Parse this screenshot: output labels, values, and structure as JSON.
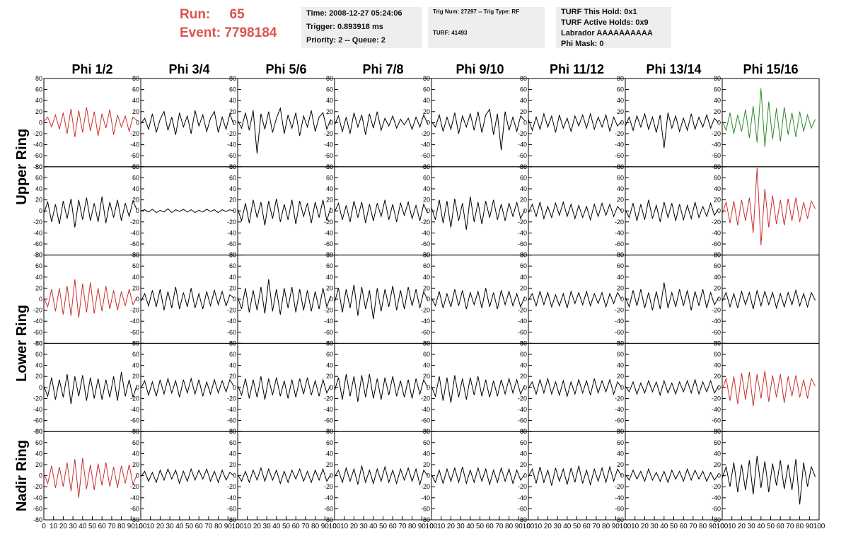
{
  "header": {
    "run_label": "Run:",
    "run": "65",
    "event_label": "Event:",
    "event": "7798184",
    "boxes": [
      [
        "Time: 2008-12-27 05:24:06",
        "Trigger: 0.893918 ms",
        "Priority: 2 -- Queue: 2"
      ],
      [
        "Trig Num: 27297 -- Trig Type: RF",
        "TURF: 41493"
      ],
      [
        "TURF This Hold: 0x1",
        "TURF Active Holds: 0x9",
        "Labrador AAAAAAAAAA",
        "Phi Mask: 0"
      ]
    ]
  },
  "chart_data": {
    "type": "line",
    "columns": [
      "Phi 1/2",
      "Phi 3/4",
      "Phi 5/6",
      "Phi 7/8",
      "Phi 9/10",
      "Phi 11/12",
      "Phi 13/14",
      "Phi 15/16"
    ],
    "row_labels": [
      "Upper Ring",
      "Lower Ring",
      "Nadir Ring"
    ],
    "xlim": [
      0,
      100
    ],
    "ylim": [
      -80,
      80
    ],
    "xticks": [
      0,
      10,
      20,
      30,
      40,
      50,
      60,
      70,
      80,
      90,
      100
    ],
    "yticks": [
      -80,
      -60,
      -40,
      -20,
      0,
      20,
      40,
      60,
      80
    ],
    "x": [
      0,
      4,
      8,
      12,
      16,
      20,
      24,
      28,
      32,
      36,
      40,
      44,
      48,
      52,
      56,
      60,
      64,
      68,
      72,
      76,
      80,
      84,
      88,
      92,
      96
    ],
    "series": [
      {
        "color": "#c8302c",
        "values": [
          2,
          10,
          -8,
          14,
          -12,
          18,
          -20,
          25,
          -26,
          22,
          -18,
          28,
          -15,
          20,
          -24,
          16,
          -10,
          24,
          -22,
          14,
          -8,
          12,
          -16,
          10,
          4
        ]
      },
      {
        "color": "#000000",
        "values": [
          -2,
          8,
          -12,
          16,
          -18,
          6,
          20,
          -14,
          10,
          -22,
          18,
          -8,
          12,
          -20,
          22,
          -6,
          14,
          -16,
          8,
          20,
          -18,
          10,
          -12,
          16,
          -4
        ]
      },
      {
        "color": "#000000",
        "values": [
          4,
          -10,
          18,
          -14,
          22,
          -56,
          16,
          -12,
          20,
          -18,
          8,
          26,
          -20,
          14,
          -10,
          18,
          -24,
          12,
          -8,
          22,
          -16,
          10,
          18,
          -12,
          6
        ]
      },
      {
        "color": "#000000",
        "values": [
          -4,
          12,
          -16,
          10,
          -20,
          18,
          -8,
          14,
          -22,
          16,
          -10,
          20,
          -14,
          8,
          -6,
          12,
          -10,
          6,
          -4,
          8,
          -12,
          10,
          -8,
          14,
          -2
        ]
      },
      {
        "color": "#000000",
        "values": [
          2,
          -8,
          14,
          -16,
          10,
          -12,
          18,
          -20,
          12,
          -8,
          16,
          -14,
          20,
          -18,
          14,
          24,
          -22,
          16,
          -50,
          20,
          -14,
          10,
          -16,
          12,
          4
        ]
      },
      {
        "color": "#000000",
        "values": [
          6,
          -14,
          10,
          -12,
          16,
          -8,
          12,
          -18,
          14,
          -10,
          8,
          -16,
          12,
          -6,
          14,
          -10,
          16,
          -12,
          10,
          -8,
          14,
          -16,
          10,
          -6,
          2
        ]
      },
      {
        "color": "#000000",
        "values": [
          -6,
          10,
          -14,
          12,
          -8,
          16,
          -12,
          10,
          -18,
          14,
          -46,
          18,
          -10,
          12,
          -16,
          8,
          -14,
          16,
          -12,
          10,
          -8,
          14,
          -10,
          8,
          0
        ]
      },
      {
        "color": "#2a8a2a",
        "values": [
          4,
          -14,
          18,
          -20,
          14,
          -16,
          24,
          -28,
          30,
          -36,
          62,
          -44,
          38,
          -30,
          26,
          -34,
          28,
          -22,
          18,
          -26,
          20,
          -16,
          14,
          -10,
          6
        ]
      },
      {
        "color": "#000000",
        "values": [
          -4,
          16,
          -20,
          12,
          -24,
          18,
          -14,
          22,
          -30,
          20,
          -16,
          24,
          -18,
          14,
          -20,
          26,
          -22,
          16,
          -12,
          20,
          -18,
          14,
          -10,
          18,
          2
        ]
      },
      {
        "color": "#000000",
        "values": [
          0,
          2,
          -2,
          3,
          -3,
          1,
          -2,
          4,
          -3,
          2,
          -1,
          3,
          -2,
          2,
          -3,
          1,
          -2,
          3,
          -1,
          2,
          -3,
          2,
          -1,
          2,
          0
        ]
      },
      {
        "color": "#000000",
        "values": [
          4,
          -18,
          14,
          -22,
          20,
          -12,
          16,
          -26,
          18,
          -14,
          22,
          -20,
          12,
          -16,
          20,
          -24,
          18,
          -10,
          14,
          -22,
          16,
          -12,
          20,
          -18,
          6
        ]
      },
      {
        "color": "#000000",
        "values": [
          -2,
          14,
          -16,
          10,
          -20,
          18,
          -12,
          16,
          -22,
          12,
          -18,
          14,
          -10,
          20,
          -16,
          12,
          -20,
          14,
          -8,
          16,
          -14,
          10,
          -18,
          12,
          -4
        ]
      },
      {
        "color": "#000000",
        "values": [
          6,
          -16,
          20,
          -22,
          18,
          -30,
          22,
          -18,
          14,
          -34,
          26,
          -20,
          16,
          -24,
          18,
          -12,
          20,
          -16,
          12,
          -18,
          14,
          -10,
          16,
          -14,
          2
        ]
      },
      {
        "color": "#000000",
        "values": [
          -4,
          12,
          -10,
          16,
          -14,
          8,
          -12,
          14,
          -8,
          16,
          -10,
          12,
          -14,
          10,
          -12,
          8,
          -16,
          12,
          -10,
          14,
          -8,
          12,
          -10,
          8,
          0
        ]
      },
      {
        "color": "#000000",
        "values": [
          2,
          -12,
          14,
          -18,
          12,
          -16,
          20,
          -14,
          10,
          -20,
          16,
          -12,
          14,
          -18,
          12,
          -16,
          10,
          -14,
          16,
          -12,
          8,
          -10,
          14,
          -8,
          4
        ]
      },
      {
        "color": "#c8302c",
        "values": [
          -6,
          16,
          -22,
          18,
          -26,
          20,
          -18,
          24,
          -40,
          78,
          -62,
          40,
          -30,
          28,
          -24,
          20,
          -26,
          22,
          -18,
          24,
          -20,
          16,
          -14,
          18,
          4
        ]
      },
      {
        "color": "#c8302c",
        "values": [
          2,
          -14,
          18,
          -22,
          20,
          -28,
          24,
          -30,
          36,
          -34,
          28,
          -24,
          30,
          -26,
          20,
          -22,
          24,
          -18,
          16,
          -20,
          14,
          -12,
          18,
          -10,
          4
        ]
      },
      {
        "color": "#000000",
        "values": [
          -4,
          10,
          -12,
          16,
          -14,
          18,
          -20,
          14,
          -16,
          22,
          -18,
          12,
          -14,
          20,
          -16,
          10,
          -18,
          14,
          -12,
          16,
          -10,
          14,
          -12,
          8,
          2
        ]
      },
      {
        "color": "#000000",
        "values": [
          4,
          -18,
          20,
          -24,
          16,
          -20,
          22,
          -26,
          36,
          -22,
          18,
          -28,
          20,
          -16,
          22,
          -24,
          18,
          -20,
          16,
          -22,
          14,
          -18,
          20,
          -14,
          6
        ]
      },
      {
        "color": "#000000",
        "values": [
          -6,
          20,
          -24,
          18,
          -16,
          26,
          -30,
          22,
          -18,
          16,
          -36,
          20,
          -22,
          18,
          -14,
          24,
          -20,
          16,
          -18,
          22,
          -12,
          18,
          -16,
          14,
          -2
        ]
      },
      {
        "color": "#000000",
        "values": [
          2,
          -12,
          14,
          -16,
          10,
          -14,
          18,
          -12,
          16,
          -18,
          12,
          -10,
          14,
          -16,
          20,
          -14,
          12,
          -18,
          16,
          -10,
          14,
          -12,
          10,
          -14,
          4
        ]
      },
      {
        "color": "#000000",
        "values": [
          -2,
          10,
          -12,
          14,
          -10,
          12,
          -14,
          8,
          -12,
          10,
          -16,
          14,
          -8,
          12,
          -10,
          14,
          -12,
          10,
          -8,
          12,
          -14,
          10,
          -8,
          12,
          0
        ]
      },
      {
        "color": "#000000",
        "values": [
          4,
          -14,
          16,
          -12,
          18,
          -16,
          12,
          -20,
          14,
          -18,
          30,
          -16,
          12,
          -14,
          18,
          -12,
          16,
          -20,
          14,
          -12,
          18,
          -16,
          12,
          -10,
          2
        ]
      },
      {
        "color": "#000000",
        "values": [
          -4,
          12,
          -14,
          10,
          -16,
          14,
          -10,
          12,
          -18,
          16,
          -12,
          14,
          -10,
          12,
          -16,
          10,
          -14,
          12,
          -10,
          16,
          -12,
          10,
          -14,
          12,
          -2
        ]
      },
      {
        "color": "#000000",
        "values": [
          2,
          -16,
          18,
          -22,
          14,
          -18,
          24,
          -30,
          20,
          -16,
          22,
          -24,
          18,
          -20,
          16,
          -22,
          14,
          -18,
          20,
          -24,
          28,
          -16,
          14,
          -18,
          4
        ]
      },
      {
        "color": "#000000",
        "values": [
          -2,
          12,
          -14,
          10,
          -16,
          14,
          -12,
          16,
          -10,
          12,
          -18,
          14,
          -10,
          16,
          -12,
          14,
          -16,
          10,
          -12,
          14,
          -10,
          12,
          -8,
          14,
          2
        ]
      },
      {
        "color": "#000000",
        "values": [
          4,
          -14,
          16,
          -20,
          14,
          -18,
          20,
          -22,
          16,
          -14,
          18,
          -16,
          12,
          -20,
          14,
          -18,
          16,
          -12,
          18,
          -14,
          12,
          -16,
          14,
          -10,
          4
        ]
      },
      {
        "color": "#000000",
        "values": [
          -6,
          18,
          -22,
          24,
          -16,
          20,
          -26,
          22,
          -18,
          24,
          -20,
          16,
          -22,
          18,
          -14,
          20,
          -16,
          12,
          -18,
          14,
          -20,
          16,
          -12,
          14,
          0
        ]
      },
      {
        "color": "#000000",
        "values": [
          2,
          -16,
          20,
          -24,
          18,
          -28,
          22,
          -18,
          16,
          -22,
          18,
          -14,
          20,
          -16,
          14,
          -18,
          12,
          -16,
          14,
          -12,
          16,
          -10,
          14,
          -12,
          4
        ]
      },
      {
        "color": "#000000",
        "values": [
          -2,
          10,
          -12,
          14,
          -10,
          16,
          -12,
          10,
          -14,
          12,
          -16,
          10,
          -12,
          14,
          -10,
          12,
          -14,
          16,
          -10,
          12,
          -8,
          14,
          -12,
          10,
          0
        ]
      },
      {
        "color": "#000000",
        "values": [
          2,
          -8,
          10,
          -12,
          8,
          -10,
          12,
          -8,
          10,
          -14,
          12,
          -10,
          8,
          -12,
          10,
          -8,
          12,
          -10,
          14,
          -12,
          10,
          -8,
          12,
          -10,
          2
        ]
      },
      {
        "color": "#c8302c",
        "values": [
          -4,
          16,
          -24,
          20,
          -30,
          26,
          -22,
          28,
          -34,
          24,
          -20,
          30,
          -26,
          22,
          -18,
          24,
          -28,
          20,
          -16,
          22,
          -18,
          14,
          -20,
          16,
          2
        ]
      },
      {
        "color": "#c8302c",
        "values": [
          4,
          -14,
          18,
          -22,
          16,
          -20,
          24,
          -28,
          30,
          -40,
          32,
          -24,
          20,
          -26,
          22,
          -18,
          24,
          -20,
          16,
          -22,
          18,
          -14,
          20,
          -16,
          2
        ]
      },
      {
        "color": "#000000",
        "values": [
          -2,
          8,
          -10,
          6,
          -12,
          10,
          -8,
          12,
          -6,
          10,
          -14,
          8,
          -10,
          12,
          -8,
          10,
          -6,
          12,
          -10,
          8,
          -12,
          10,
          -8,
          6,
          0
        ]
      },
      {
        "color": "#000000",
        "values": [
          2,
          -10,
          8,
          -12,
          10,
          -8,
          14,
          -10,
          12,
          -8,
          10,
          -14,
          8,
          -12,
          10,
          -6,
          12,
          -10,
          8,
          -12,
          10,
          -8,
          12,
          -10,
          2
        ]
      },
      {
        "color": "#000000",
        "values": [
          -2,
          10,
          -12,
          14,
          -10,
          12,
          -16,
          18,
          -12,
          10,
          -14,
          12,
          -10,
          16,
          -12,
          10,
          -14,
          12,
          -8,
          14,
          -10,
          12,
          -16,
          10,
          0
        ]
      },
      {
        "color": "#000000",
        "values": [
          2,
          -12,
          10,
          -14,
          12,
          -10,
          14,
          -12,
          16,
          -14,
          10,
          -12,
          14,
          -10,
          12,
          -16,
          10,
          -12,
          14,
          -10,
          12,
          -14,
          10,
          -8,
          2
        ]
      },
      {
        "color": "#000000",
        "values": [
          -2,
          12,
          -14,
          16,
          -12,
          10,
          -18,
          14,
          -10,
          12,
          -16,
          14,
          -12,
          18,
          -14,
          10,
          -16,
          12,
          -10,
          14,
          -12,
          16,
          -10,
          12,
          0
        ]
      },
      {
        "color": "#000000",
        "values": [
          2,
          -8,
          10,
          -6,
          8,
          -10,
          12,
          -8,
          6,
          -10,
          8,
          -12,
          10,
          -6,
          8,
          -10,
          12,
          -8,
          10,
          -6,
          8,
          -10,
          6,
          -8,
          2
        ]
      },
      {
        "color": "#000000",
        "values": [
          -4,
          16,
          -20,
          24,
          -30,
          20,
          -26,
          28,
          -34,
          36,
          -22,
          26,
          -30,
          22,
          -18,
          28,
          -24,
          20,
          -26,
          30,
          -52,
          24,
          -20,
          16,
          -2
        ]
      }
    ]
  }
}
